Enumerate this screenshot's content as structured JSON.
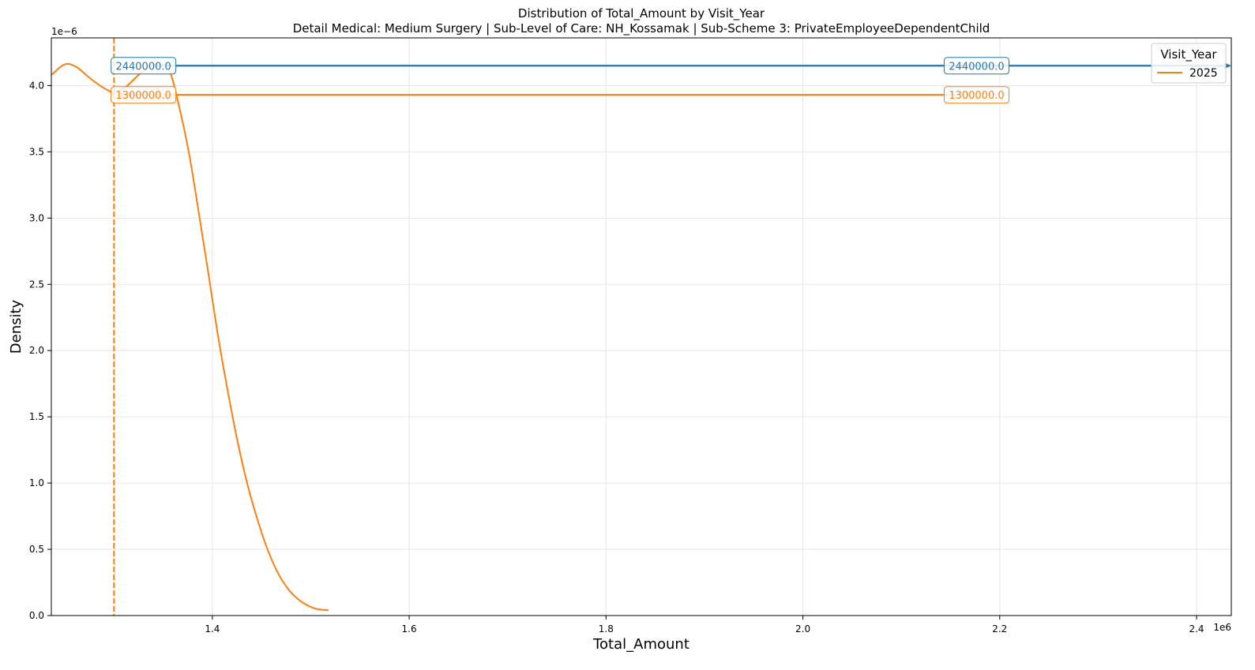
{
  "chart_data": {
    "type": "line",
    "title": "Distribution of Total_Amount by Visit_Year",
    "subtitle": "Detail Medical: Medium Surgery | Sub-Level of Care: NH_Kossamak | Sub-Scheme 3: PrivateEmployeeDependentChild",
    "xlabel": "Total_Amount",
    "ylabel": "Density",
    "x_offset_label": "1e6",
    "y_offset_label": "1e−6",
    "xlim": [
      1.2364,
      2.4353
    ],
    "ylim": [
      0.0,
      4.36
    ],
    "x_ticks": [
      1.4,
      1.6,
      1.8,
      2.0,
      2.2,
      2.4
    ],
    "x_tick_labels": [
      "1.4",
      "1.6",
      "1.8",
      "2.0",
      "2.2",
      "2.4"
    ],
    "y_ticks": [
      0.0,
      0.5,
      1.0,
      1.5,
      2.0,
      2.5,
      3.0,
      3.5,
      4.0
    ],
    "y_tick_labels": [
      "0.0",
      "0.5",
      "1.0",
      "1.5",
      "2.0",
      "2.5",
      "3.0",
      "3.5",
      "4.0"
    ],
    "grid": true,
    "legend": {
      "title": "Visit_Year",
      "placement": "top-right",
      "entries": [
        {
          "label": "2025",
          "color": "#ff7f0e"
        }
      ]
    },
    "series": [
      {
        "name": "2025",
        "color": "#ff7f0e",
        "x": [
          1.2364,
          1.25,
          1.262,
          1.275,
          1.288,
          1.3,
          1.312,
          1.325,
          1.338,
          1.345,
          1.356,
          1.366,
          1.376,
          1.386,
          1.396,
          1.406,
          1.416,
          1.426,
          1.436,
          1.446,
          1.456,
          1.466,
          1.476,
          1.486,
          1.496,
          1.506,
          1.518
        ],
        "y": [
          4.08,
          4.16,
          4.14,
          4.06,
          3.99,
          3.95,
          3.99,
          4.08,
          4.15,
          4.16,
          4.12,
          3.85,
          3.5,
          3.05,
          2.58,
          2.1,
          1.68,
          1.3,
          0.98,
          0.72,
          0.5,
          0.33,
          0.21,
          0.13,
          0.08,
          0.05,
          0.04
        ]
      }
    ],
    "vlines": [
      {
        "x": 1.3,
        "color": "#ff7f0e",
        "style": "dashed"
      }
    ],
    "annotations": [
      {
        "text": "2440000.0",
        "color": "#1f77b4",
        "y": 4.15,
        "x_left": 1.33,
        "x_mid": 2.1765,
        "x_right": 2.4353,
        "arrow": "right"
      },
      {
        "text": "1300000.0",
        "color": "#ff7f0e",
        "y": 3.93,
        "x_left": 1.33,
        "x_mid": 2.1765,
        "x_right": 2.1765,
        "arrow_x": 1.3,
        "arrow": "left"
      }
    ]
  }
}
